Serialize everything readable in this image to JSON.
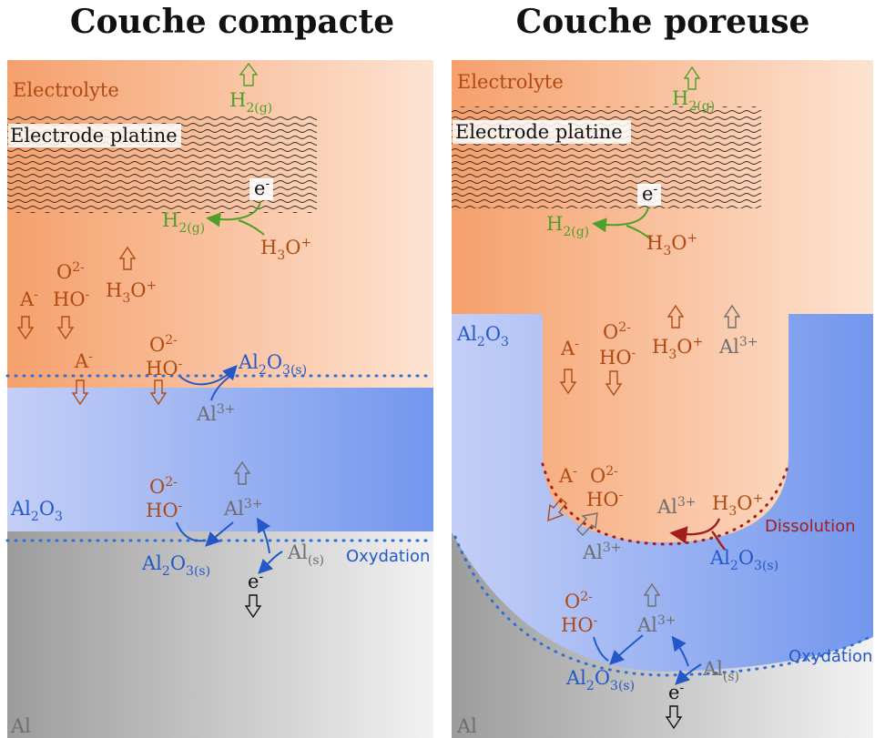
{
  "titles": {
    "left": "Couche compacte",
    "right": "Couche poreuse"
  },
  "regions": {
    "electrolyte": "Electrolyte",
    "electrode": "Electrode platine",
    "oxide": "Al",
    "oxide_sub": "2",
    "oxide_o": "O",
    "oxide_o_sub": "3",
    "metal": "Al"
  },
  "species": {
    "h2g_base": "H",
    "h2g_sub": "2(g)",
    "electron": "e",
    "electron_sup": "-",
    "h3o_base": "H",
    "h3o_sub": "3",
    "h3o_o": "O",
    "h3o_sup": "+",
    "o2_base": "O",
    "o2_sup": "2-",
    "ho_base": "HO",
    "ho_sup": "-",
    "a_base": "A",
    "a_sup": "-",
    "al3_base": "Al",
    "al3_sup": "3+",
    "als_base": "Al",
    "als_sub": "(s)",
    "al2o3s_al": "Al",
    "al2o3s_2": "2",
    "al2o3s_o": "O",
    "al2o3s_3s": "3(s)"
  },
  "processes": {
    "oxidation": "Oxydation",
    "dissolution": "Dissolution"
  },
  "colors": {
    "electrolyte_dark": "#f5a06c",
    "electrolyte_light": "#fde3d2",
    "oxide_light": "#c2cdf6",
    "oxide_dark": "#7597ed",
    "metal_dark": "#9c9c9c",
    "metal_light": "#f2f2f2",
    "species_brown": "#b04a12",
    "species_green": "#4fa02a",
    "species_blue": "#2458c9",
    "species_gray": "#6e6e6e",
    "dotted_blue": "#2e6fd8",
    "dotted_red": "#a01e1e"
  }
}
